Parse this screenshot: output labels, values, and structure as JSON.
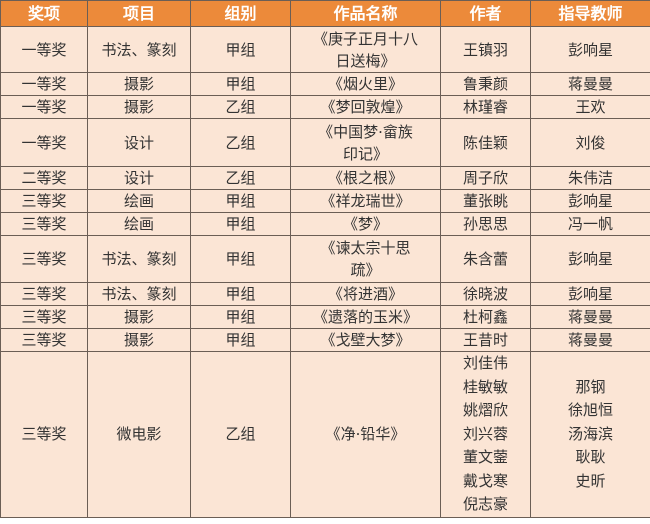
{
  "table": {
    "headers": [
      "奖项",
      "项目",
      "组别",
      "作品名称",
      "作者",
      "指导教师"
    ],
    "rows": [
      [
        "一等奖",
        "书法、篆刻",
        "甲组",
        "《庚子正月十八日送梅》",
        "王镇羽",
        "彭响星"
      ],
      [
        "一等奖",
        "摄影",
        "甲组",
        "《烟火里》",
        "鲁秉颜",
        "蒋曼曼"
      ],
      [
        "一等奖",
        "摄影",
        "乙组",
        "《梦回敦煌》",
        "林瑾睿",
        "王欢"
      ],
      [
        "一等奖",
        "设计",
        "乙组",
        "《中国梦·畲族印记》",
        "陈佳颖",
        "刘俊"
      ],
      [
        "二等奖",
        "设计",
        "乙组",
        "《根之根》",
        "周子欣",
        "朱伟洁"
      ],
      [
        "三等奖",
        "绘画",
        "甲组",
        "《祥龙瑞世》",
        "董张眺",
        "彭响星"
      ],
      [
        "三等奖",
        "绘画",
        "甲组",
        "《梦》",
        "孙思思",
        "冯一帆"
      ],
      [
        "三等奖",
        "书法、篆刻",
        "甲组",
        "《谏太宗十思疏》",
        "朱含蕾",
        "彭响星"
      ],
      [
        "三等奖",
        "书法、篆刻",
        "甲组",
        "《将进酒》",
        "徐晓波",
        "彭响星"
      ],
      [
        "三等奖",
        "摄影",
        "甲组",
        "《遗落的玉米》",
        "杜柯鑫",
        "蒋曼曼"
      ],
      [
        "三等奖",
        "摄影",
        "甲组",
        "《戈壁大梦》",
        "王昔时",
        "蒋曼曼"
      ],
      [
        "三等奖",
        "微电影",
        "乙组",
        "《净·铅华》",
        "刘佳伟\n桂敏敏\n姚熠欣\n刘兴蓉\n董文蓥\n戴戈寒\n倪志豪",
        "那钢\n徐旭恒\n汤海滨\n耿耿\n史昕"
      ]
    ]
  },
  "colors": {
    "header_bg": "#ec8a3a",
    "cell_bg": "#fbe5d5",
    "border": "#6b5e55"
  }
}
